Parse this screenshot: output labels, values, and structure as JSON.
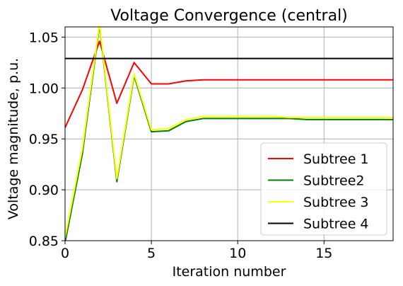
{
  "chart_data": {
    "type": "line",
    "title": "Voltage Convergence (central)",
    "xlabel": "Iteration number",
    "ylabel": "Voltage magnitude, p.u.",
    "xlim": [
      0,
      19
    ],
    "ylim": [
      0.85,
      1.06
    ],
    "xticks": [
      0,
      5,
      10,
      15
    ],
    "xtick_labels": [
      "0",
      "5",
      "10",
      "15"
    ],
    "yticks": [
      0.85,
      0.9,
      0.95,
      1.0,
      1.05
    ],
    "ytick_labels": [
      "0.85",
      "0.90",
      "0.95",
      "1.00",
      "1.05"
    ],
    "grid": true,
    "legend_position": "bottom-right",
    "x": [
      0,
      1,
      2,
      3,
      4,
      5,
      6,
      7,
      8,
      9,
      10,
      11,
      12,
      13,
      14,
      15,
      16,
      17,
      18,
      19
    ],
    "series": [
      {
        "name": "Subtree 1",
        "color": "#ff0000",
        "values": [
          0.961,
          0.998,
          1.046,
          0.985,
          1.025,
          1.004,
          1.004,
          1.007,
          1.008,
          1.008,
          1.008,
          1.008,
          1.008,
          1.008,
          1.008,
          1.008,
          1.008,
          1.008,
          1.008,
          1.008
        ]
      },
      {
        "name": "Subtree2",
        "color": "#008000",
        "values": [
          0.848,
          0.935,
          1.062,
          0.908,
          1.012,
          0.957,
          0.958,
          0.967,
          0.97,
          0.97,
          0.97,
          0.97,
          0.97,
          0.97,
          0.969,
          0.969,
          0.969,
          0.969,
          0.969,
          0.969
        ]
      },
      {
        "name": "Subtree 3",
        "color": "#ffff00",
        "values": [
          0.853,
          0.94,
          1.064,
          0.911,
          1.014,
          0.959,
          0.96,
          0.969,
          0.972,
          0.972,
          0.972,
          0.972,
          0.972,
          0.971,
          0.971,
          0.971,
          0.971,
          0.971,
          0.971,
          0.971
        ]
      },
      {
        "name": "Subtree 4",
        "color": "#000000",
        "values": [
          1.029,
          1.029,
          1.029,
          1.029,
          1.029,
          1.029,
          1.029,
          1.029,
          1.029,
          1.029,
          1.029,
          1.029,
          1.029,
          1.029,
          1.029,
          1.029,
          1.029,
          1.029,
          1.029,
          1.029
        ]
      }
    ]
  }
}
